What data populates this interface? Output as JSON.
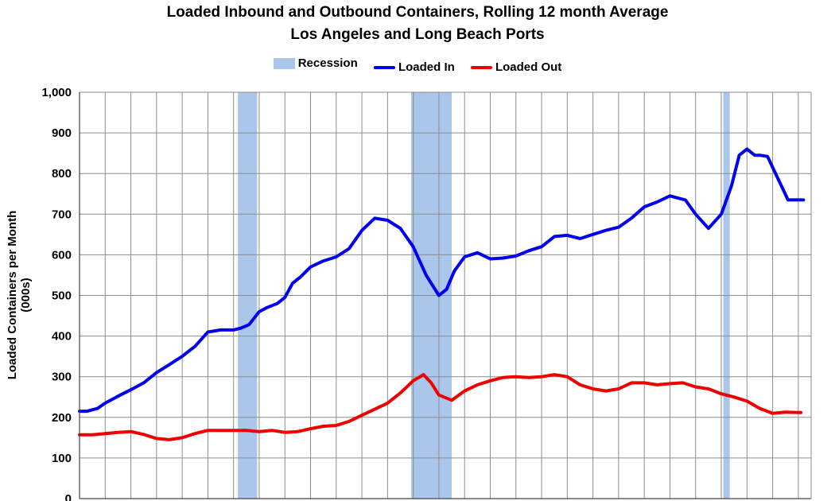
{
  "chart_data": {
    "type": "line",
    "title": "Loaded Inbound and Outbound Containers, Rolling 12 month Average",
    "subtitle": "Los Angeles and Long Beach Ports",
    "xlabel": "",
    "ylabel": "Loaded Containers per Month (000s)",
    "ylim": [
      0,
      1000
    ],
    "yticks": [
      "0",
      "100",
      "200",
      "300",
      "400",
      "500",
      "600",
      "700",
      "800",
      "900",
      "1,000"
    ],
    "ytick_values": [
      0,
      100,
      200,
      300,
      400,
      500,
      600,
      700,
      800,
      900,
      1000
    ],
    "xlim": [
      1995,
      2023.5
    ],
    "grid": true,
    "legend_position": "top",
    "legend": [
      "Recession",
      "Loaded In",
      "Loaded Out"
    ],
    "recessions": [
      [
        2001.17,
        2001.92
      ],
      [
        2007.92,
        2009.5
      ],
      [
        2020.08,
        2020.33
      ]
    ],
    "series": [
      {
        "name": "Loaded In",
        "color": "#0000ee",
        "x": [
          1995.0,
          1995.3,
          1995.7,
          1996.0,
          1996.5,
          1997.0,
          1997.5,
          1998.0,
          1998.5,
          1999.0,
          1999.5,
          2000.0,
          2000.5,
          2001.0,
          2001.3,
          2001.6,
          2002.0,
          2002.3,
          2002.7,
          2003.0,
          2003.3,
          2003.6,
          2004.0,
          2004.5,
          2005.0,
          2005.5,
          2006.0,
          2006.5,
          2007.0,
          2007.5,
          2008.0,
          2008.5,
          2009.0,
          2009.3,
          2009.6,
          2010.0,
          2010.5,
          2011.0,
          2011.5,
          2012.0,
          2012.5,
          2013.0,
          2013.5,
          2014.0,
          2014.5,
          2015.0,
          2015.5,
          2016.0,
          2016.5,
          2017.0,
          2017.5,
          2018.0,
          2018.3,
          2018.6,
          2019.0,
          2019.5,
          2020.0,
          2020.4,
          2020.7,
          2021.0,
          2021.3,
          2021.5,
          2021.8,
          2022.0,
          2022.3,
          2022.6,
          2022.9,
          2023.1,
          2023.2
        ],
        "values": [
          215,
          215,
          222,
          235,
          252,
          268,
          285,
          310,
          330,
          350,
          375,
          410,
          415,
          415,
          420,
          428,
          460,
          470,
          480,
          495,
          530,
          545,
          570,
          585,
          595,
          615,
          660,
          690,
          685,
          665,
          620,
          550,
          500,
          515,
          560,
          595,
          605,
          590,
          592,
          597,
          610,
          620,
          645,
          648,
          640,
          650,
          660,
          668,
          690,
          718,
          730,
          745,
          740,
          735,
          700,
          665,
          700,
          770,
          845,
          860,
          845,
          845,
          842,
          815,
          775,
          735,
          735,
          735,
          735
        ]
      },
      {
        "name": "Loaded Out",
        "color": "#ee0000",
        "x": [
          1995.0,
          1995.5,
          1996.0,
          1996.5,
          1997.0,
          1997.5,
          1998.0,
          1998.5,
          1999.0,
          1999.5,
          2000.0,
          2000.5,
          2001.0,
          2001.5,
          2002.0,
          2002.5,
          2003.0,
          2003.5,
          2004.0,
          2004.5,
          2005.0,
          2005.5,
          2006.0,
          2006.5,
          2007.0,
          2007.5,
          2008.0,
          2008.4,
          2008.7,
          2009.0,
          2009.5,
          2010.0,
          2010.5,
          2011.0,
          2011.5,
          2012.0,
          2012.5,
          2013.0,
          2013.5,
          2014.0,
          2014.5,
          2015.0,
          2015.5,
          2016.0,
          2016.5,
          2017.0,
          2017.5,
          2018.0,
          2018.5,
          2019.0,
          2019.5,
          2020.0,
          2020.5,
          2021.0,
          2021.5,
          2022.0,
          2022.5,
          2023.0,
          2023.1
        ],
        "values": [
          157,
          157,
          160,
          163,
          165,
          158,
          148,
          145,
          150,
          160,
          168,
          168,
          168,
          168,
          165,
          168,
          163,
          165,
          172,
          178,
          180,
          190,
          205,
          220,
          235,
          260,
          290,
          305,
          285,
          255,
          242,
          265,
          280,
          290,
          298,
          300,
          298,
          300,
          305,
          300,
          280,
          270,
          265,
          270,
          285,
          285,
          280,
          283,
          285,
          275,
          270,
          258,
          250,
          240,
          222,
          210,
          213,
          212,
          212
        ]
      }
    ]
  }
}
